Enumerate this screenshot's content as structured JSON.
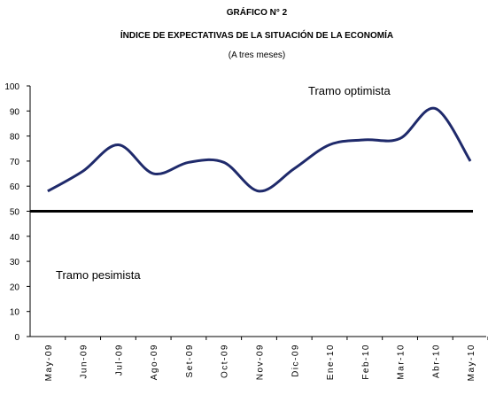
{
  "chart_data": {
    "type": "line",
    "title": "GRÁFICO N° 2",
    "subtitle": "ÍNDICE DE EXPECTATIVAS DE LA SITUACIÓN DE LA ECONOMÍA",
    "note": "(A tres meses)",
    "categories": [
      "May-09",
      "Jun-09",
      "Jul-09",
      "Ago-09",
      "Set-09",
      "Oct-09",
      "Nov-09",
      "Dic-09",
      "Ene-10",
      "Feb-10",
      "Mar-10",
      "Abr-10",
      "May-10"
    ],
    "values": [
      58,
      66,
      76.5,
      65,
      69.5,
      69.5,
      58,
      67,
      76.5,
      78.5,
      79,
      91,
      70
    ],
    "color": "#1f2a6b",
    "ylim": [
      0,
      100
    ],
    "yticks": [
      0,
      10,
      20,
      30,
      40,
      50,
      60,
      70,
      80,
      90,
      100
    ],
    "reference_line": 50,
    "annotations": [
      "Tramo optimista",
      "Tramo pesimista"
    ],
    "grid": false
  }
}
